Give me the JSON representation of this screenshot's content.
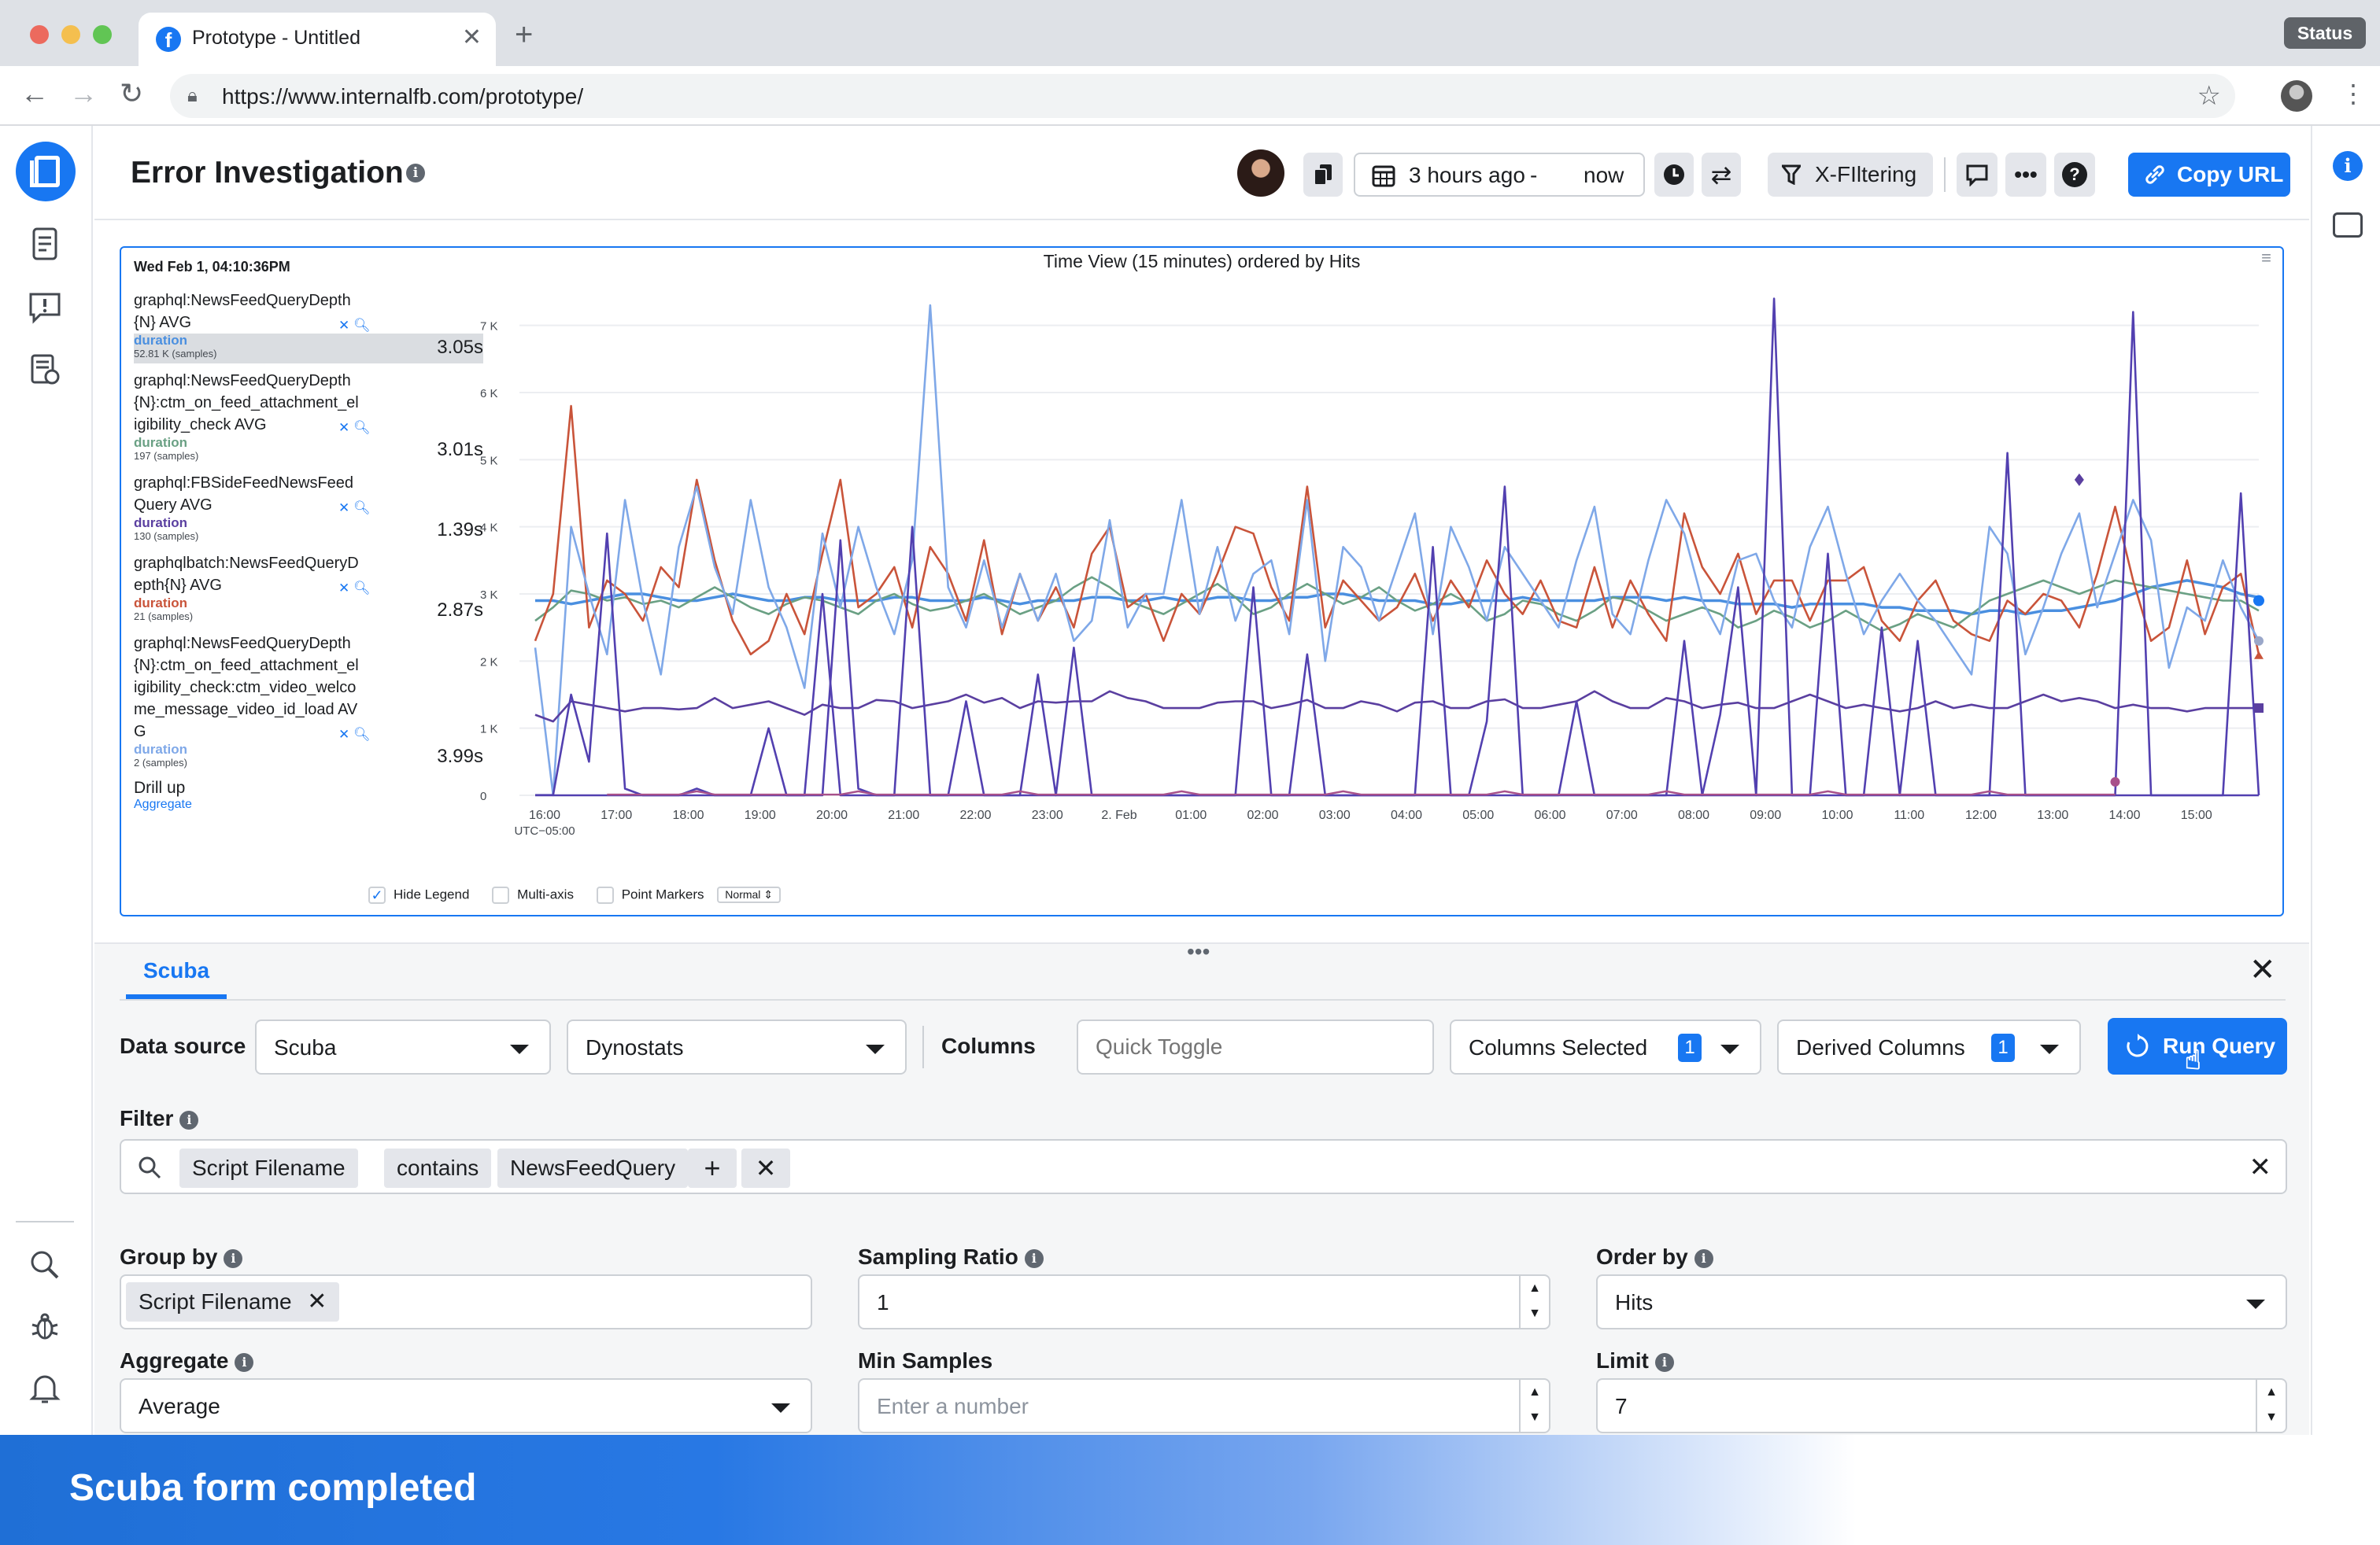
{
  "browser": {
    "tab_title": "Prototype - Untitled",
    "status_label": "Status",
    "url": "https://www.internalfb.com/prototype/"
  },
  "header": {
    "title": "Error Investigation",
    "time_from": "3 hours ago",
    "time_sep": "-",
    "time_to": "now",
    "filtering_label": "X-FIltering",
    "copy_url_label": "Copy URL"
  },
  "chart": {
    "timestamp": "Wed Feb 1, 04:10:36PM",
    "menu_glyph": "≡",
    "legend": [
      {
        "name": "graphql:NewsFeedQueryDepth{N} AVG",
        "metric": "duration",
        "samples": "52.81 K (samples)",
        "value": "3.05s",
        "color": "#4a8fe0",
        "highlighted": true
      },
      {
        "name": "graphql:NewsFeedQueryDepth{N}:ctm_on_feed_attachment_eligibility_check AVG",
        "metric": "duration",
        "samples": "197 (samples)",
        "value": "3.01s",
        "color": "#6aa084",
        "highlighted": false
      },
      {
        "name": "graphql:FBSideFeedNewsFeedQuery AVG",
        "metric": "duration",
        "samples": "130 (samples)",
        "value": "1.39s",
        "color": "#5a3fa0",
        "highlighted": false
      },
      {
        "name": "graphqlbatch:NewsFeedQueryDepth{N} AVG",
        "metric": "duration",
        "samples": "21 (samples)",
        "value": "2.87s",
        "color": "#c9543a",
        "highlighted": false
      },
      {
        "name": "graphql:NewsFeedQueryDepth{N}:ctm_on_feed_attachment_eligibility_check:ctm_video_welcome_message_video_id_load AVG",
        "metric": "duration",
        "samples": "2 (samples)",
        "value": "3.99s",
        "color": "#7fa8e8",
        "highlighted": false
      }
    ],
    "drill_up": "Drill up",
    "aggregate_link": "Aggregate",
    "options": {
      "hide_legend": "Hide Legend",
      "multi_axis": "Multi-axis",
      "point_markers": "Point Markers",
      "mode": "Normal"
    }
  },
  "chart_data": {
    "type": "line",
    "title": "Time View (15 minutes) ordered by Hits",
    "timezone_label": "UTC−05:00",
    "x_ticks": [
      "16:00",
      "17:00",
      "18:00",
      "19:00",
      "20:00",
      "21:00",
      "22:00",
      "23:00",
      "2. Feb",
      "01:00",
      "02:00",
      "03:00",
      "04:00",
      "05:00",
      "06:00",
      "07:00",
      "08:00",
      "09:00",
      "10:00",
      "11:00",
      "12:00",
      "13:00",
      "14:00",
      "15:00"
    ],
    "y_ticks": [
      "0",
      "1 K",
      "2 K",
      "3 K",
      "4 K",
      "5 K",
      "6 K",
      "7 K"
    ],
    "ylim": [
      0,
      7500
    ],
    "x_count": 97,
    "grid": true,
    "series": [
      {
        "color": "#4a8fe0",
        "values": [
          2900,
          2900,
          2850,
          2900,
          2950,
          3000,
          3000,
          2950,
          2900,
          2900,
          2950,
          3000,
          2950,
          2900,
          2900,
          2950,
          2950,
          2900,
          2900,
          2900,
          2950,
          2950,
          2900,
          2900,
          2900,
          2950,
          2900,
          2850,
          2900,
          2900,
          2900,
          2950,
          2950,
          2900,
          2900,
          2950,
          2900,
          2900,
          2950,
          2950,
          2900,
          2900,
          2950,
          2950,
          3000,
          3000,
          2950,
          2900,
          2900,
          2900,
          2850,
          2850,
          2900,
          2900,
          2900,
          2950,
          2900,
          2900,
          2900,
          2900,
          2950,
          2950,
          2950,
          2900,
          2950,
          2900,
          2900,
          2850,
          2850,
          2850,
          2800,
          2850,
          2850,
          2850,
          2850,
          2800,
          2800,
          2750,
          2750,
          2750,
          2700,
          2750,
          2750,
          2700,
          2750,
          2750,
          2800,
          2850,
          2900,
          3000,
          3100,
          3150,
          3200,
          3150,
          3100,
          3000,
          2950
        ]
      },
      {
        "color": "#6aa084",
        "values": [
          2600,
          2800,
          3050,
          3000,
          2900,
          2950,
          2850,
          2900,
          2800,
          2950,
          3100,
          2950,
          2800,
          2700,
          2850,
          2950,
          2900,
          2800,
          2700,
          2900,
          3000,
          2850,
          2750,
          2800,
          2900,
          3000,
          2850,
          2700,
          2800,
          2900,
          3100,
          3250,
          3100,
          2900,
          2800,
          2700,
          2850,
          3000,
          3150,
          2950,
          2700,
          2800,
          3000,
          3150,
          3000,
          2850,
          2950,
          3100,
          2900,
          2750,
          2850,
          3000,
          2850,
          2600,
          2700,
          2900,
          2850,
          2700,
          2600,
          2750,
          2950,
          2900,
          2750,
          2600,
          2700,
          2800,
          2700,
          2500,
          2600,
          2750,
          2650,
          2500,
          2600,
          2750,
          2600,
          2450,
          2550,
          2700,
          2600,
          2500,
          2700,
          2900,
          3000,
          3100,
          3200,
          3100,
          3000,
          3100,
          3200,
          3150,
          3100,
          3050,
          3000,
          2950,
          2900,
          2900,
          2750
        ]
      },
      {
        "color": "#c9543a",
        "values": [
          2300,
          3000,
          5800,
          2500,
          3200,
          3000,
          2600,
          3400,
          3100,
          4700,
          3500,
          2600,
          2100,
          2300,
          3000,
          2400,
          3600,
          4700,
          2800,
          3000,
          3400,
          2500,
          3700,
          3300,
          2600,
          3800,
          2400,
          3300,
          2600,
          3100,
          2500,
          3600,
          4000,
          2800,
          3000,
          2300,
          3000,
          2700,
          3300,
          4000,
          3900,
          3100,
          2600,
          4600,
          2500,
          3200,
          2900,
          2600,
          2800,
          3300,
          2600,
          3200,
          2800,
          3500,
          3000,
          2700,
          3200,
          2600,
          2500,
          3400,
          2500,
          3200,
          2700,
          2300,
          4200,
          3400,
          3000,
          3600,
          2700,
          3200,
          3200,
          2600,
          3200,
          3200,
          3400,
          2600,
          2300,
          2900,
          3200,
          2600,
          2400,
          2300,
          2900,
          2700,
          3000,
          2900,
          2500,
          3300,
          4300,
          3200,
          2300,
          2500,
          3500,
          2400,
          3100,
          3300,
          2100
        ]
      },
      {
        "color": "#7fa8e8",
        "values": [
          2200,
          0,
          4000,
          3000,
          2100,
          4400,
          2900,
          1800,
          3700,
          4600,
          3400,
          2700,
          4400,
          3100,
          2500,
          1600,
          3900,
          2800,
          4000,
          3100,
          2400,
          3500,
          7300,
          3100,
          2500,
          3500,
          2500,
          3300,
          2600,
          3300,
          2300,
          2600,
          4100,
          2500,
          3000,
          3000,
          4400,
          2700,
          3700,
          2600,
          3300,
          3500,
          2400,
          4400,
          2000,
          3700,
          3400,
          2600,
          3400,
          4200,
          2400,
          4000,
          3400,
          2600,
          3700,
          3300,
          2900,
          2500,
          3500,
          4300,
          2700,
          2400,
          3500,
          4400,
          3900,
          2900,
          2400,
          3500,
          3600,
          2900,
          2500,
          3700,
          4300,
          3300,
          2400,
          2900,
          3300,
          2900,
          2600,
          2200,
          1800,
          4000,
          3600,
          2100,
          2800,
          3600,
          4200,
          2800,
          3600,
          4400,
          3800,
          1900,
          2800,
          2600,
          3500,
          2800,
          2300
        ]
      },
      {
        "color": "#5a3fa0",
        "values": [
          1200,
          1100,
          1400,
          1350,
          1300,
          1250,
          1300,
          1300,
          1280,
          1300,
          1450,
          1300,
          1350,
          1400,
          1300,
          1200,
          1350,
          1300,
          1300,
          1420,
          1400,
          1300,
          1350,
          1400,
          1500,
          1380,
          1450,
          1300,
          1400,
          1380,
          1400,
          1400,
          1550,
          1450,
          1400,
          1300,
          1300,
          1300,
          1380,
          1400,
          1400,
          1300,
          1350,
          1420,
          1300,
          1300,
          1400,
          1350,
          1250,
          1380,
          1400,
          1300,
          1300,
          1400,
          1430,
          1300,
          1300,
          1350,
          1400,
          1550,
          1400,
          1300,
          1300,
          1450,
          1400,
          1300,
          1350,
          1380,
          1300,
          1300,
          1400,
          1500,
          1400,
          1300,
          1350,
          1300,
          1250,
          1300,
          1400,
          1300,
          1350,
          1300,
          1300,
          1400,
          1500,
          1400,
          1450,
          1400,
          1300,
          1350,
          1300,
          1300,
          1250,
          1300,
          1300,
          1300,
          1300
        ]
      },
      {
        "color": "#5240b0",
        "values": [
          0,
          0,
          0,
          0,
          0,
          0,
          0,
          0,
          0,
          0,
          0,
          0,
          0,
          0,
          0,
          0,
          3000,
          0,
          0,
          0,
          0,
          0,
          0,
          0,
          0,
          0,
          0,
          0,
          0,
          0,
          0,
          0,
          0,
          0,
          0,
          0,
          0,
          0,
          0,
          0,
          0,
          0,
          0,
          0,
          0,
          0,
          0,
          0,
          0,
          0,
          0,
          0,
          0,
          0,
          0,
          0,
          0,
          0,
          0,
          0,
          0,
          0,
          0,
          0,
          0,
          0,
          0,
          0,
          0,
          0,
          0,
          0,
          0,
          0,
          0,
          0,
          0,
          0,
          0,
          0,
          0,
          0,
          0,
          0,
          0,
          0,
          0,
          0,
          0,
          0,
          0,
          0,
          0,
          0,
          0,
          0,
          0
        ]
      }
    ]
  },
  "panel": {
    "tab": "Scuba",
    "data_source_label": "Data source",
    "data_source_value": "Scuba",
    "dataset_value": "Dynostats",
    "columns_label": "Columns",
    "quick_toggle_placeholder": "Quick Toggle",
    "columns_selected_label": "Columns Selected",
    "columns_selected_count": "1",
    "derived_columns_label": "Derived Columns",
    "derived_columns_count": "1",
    "run_query_label": "Run Query",
    "filter_label": "Filter",
    "filter_chips": [
      "Script Filename",
      "contains",
      "NewsFeedQuery"
    ],
    "group_by_label": "Group by",
    "group_by_chip": "Script Filename",
    "sampling_ratio_label": "Sampling Ratio",
    "sampling_ratio_value": "1",
    "order_by_label": "Order by",
    "order_by_value": "Hits",
    "aggregate_label": "Aggregate",
    "aggregate_value": "Average",
    "min_samples_label": "Min Samples",
    "min_samples_placeholder": "Enter a number",
    "limit_label": "Limit",
    "limit_value": "7"
  },
  "banner": {
    "text": "Scuba form completed"
  }
}
